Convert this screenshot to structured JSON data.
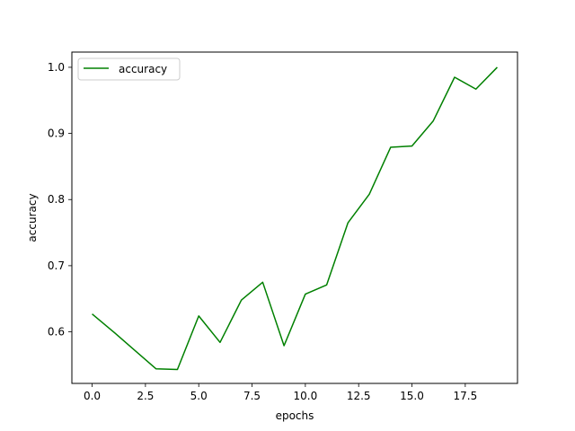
{
  "chart_data": {
    "type": "line",
    "xlabel": "epochs",
    "ylabel": "accuracy",
    "xlim": [
      -0.95,
      19.95
    ],
    "ylim": [
      0.522,
      1.023
    ],
    "xticks": [
      0,
      2.5,
      5,
      7.5,
      10,
      12.5,
      15,
      17.5
    ],
    "xtick_labels": [
      "0.0",
      "2.5",
      "5.0",
      "7.5",
      "10.0",
      "12.5",
      "15.0",
      "17.5"
    ],
    "yticks": [
      0.6,
      0.7,
      0.8,
      0.9,
      1.0
    ],
    "ytick_labels": [
      "0.6",
      "0.7",
      "0.8",
      "0.9",
      "1.0"
    ],
    "grid": false,
    "legend_position": "top-left",
    "series": [
      {
        "name": "accuracy",
        "color": "#008000",
        "x": [
          0,
          1,
          2,
          3,
          4,
          5,
          6,
          7,
          8,
          9,
          10,
          11,
          12,
          13,
          14,
          15,
          16,
          17,
          18,
          19
        ],
        "values": [
          0.627,
          0.6,
          0.572,
          0.544,
          0.543,
          0.624,
          0.584,
          0.648,
          0.675,
          0.579,
          0.657,
          0.671,
          0.765,
          0.808,
          0.879,
          0.881,
          0.919,
          0.985,
          0.967,
          1.0
        ]
      }
    ]
  }
}
